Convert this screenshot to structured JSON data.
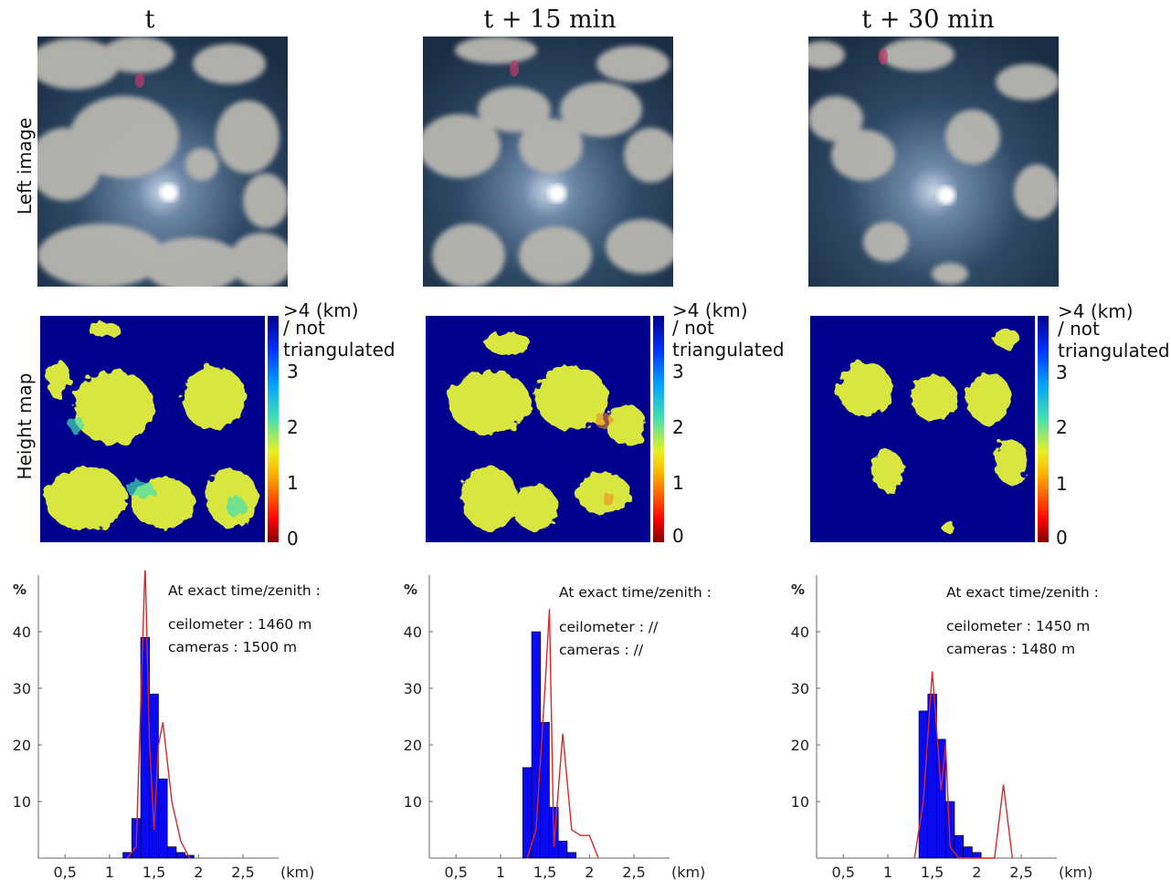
{
  "columns": [
    {
      "title": "t"
    },
    {
      "title": "t + 15 min"
    },
    {
      "title": "t + 30 min"
    }
  ],
  "row_labels": {
    "left_image": "Left image",
    "height_map": "Height map"
  },
  "colorbar": {
    "top_label_1": ">4 (km)",
    "top_label_2": "/ not",
    "top_label_3": "triangulated",
    "ticks": [
      "3",
      "2",
      "1",
      "0"
    ]
  },
  "histograms": [
    {
      "heading": "At exact time/zenith :",
      "line1": "ceilometer : 1460 m",
      "line2": "cameras : 1500 m"
    },
    {
      "heading": "At exact time/zenith :",
      "line1": "ceilometer : //",
      "line2": "cameras : //"
    },
    {
      "heading": "At exact time/zenith :",
      "line1": "ceilometer : 1450 m",
      "line2": "cameras : 1480 m"
    }
  ],
  "chart_data": [
    {
      "type": "bar",
      "ylabel": "%",
      "xlabel": "(km)",
      "xticks": [
        "0,5",
        "1",
        "1,5",
        "2",
        "2,5"
      ],
      "yticks": [
        "10",
        "20",
        "30",
        "40"
      ],
      "xlim": [
        0.2,
        2.9
      ],
      "ylim": [
        0,
        50
      ],
      "bin_width": 0.1,
      "bars_x": [
        1.2,
        1.3,
        1.4,
        1.5,
        1.6,
        1.7,
        1.8,
        1.9
      ],
      "bars_y": [
        1,
        7,
        39,
        29,
        14,
        2,
        1,
        0.5
      ],
      "line_x": [
        1.2,
        1.3,
        1.4,
        1.45,
        1.5,
        1.55,
        1.6,
        1.7,
        1.8,
        1.9
      ],
      "line_y": [
        0,
        2,
        52,
        20,
        5,
        20,
        24,
        10,
        3,
        0
      ]
    },
    {
      "type": "bar",
      "ylabel": "%",
      "xlabel": "(km)",
      "xticks": [
        "0,5",
        "1",
        "1,5",
        "2",
        "2,5"
      ],
      "yticks": [
        "10",
        "20",
        "30",
        "40"
      ],
      "xlim": [
        0.2,
        2.9
      ],
      "ylim": [
        0,
        50
      ],
      "bin_width": 0.1,
      "bars_x": [
        1.3,
        1.4,
        1.5,
        1.6,
        1.7,
        1.8
      ],
      "bars_y": [
        16,
        40,
        24,
        9,
        3,
        1
      ],
      "line_x": [
        1.3,
        1.4,
        1.5,
        1.55,
        1.6,
        1.7,
        1.8,
        1.9,
        2.0,
        2.1
      ],
      "line_y": [
        0,
        5,
        30,
        44,
        2,
        22,
        5,
        4,
        4,
        0
      ]
    },
    {
      "type": "bar",
      "ylabel": "%",
      "xlabel": "(km)",
      "xticks": [
        "0,5",
        "1",
        "1,5",
        "2",
        "2,5"
      ],
      "yticks": [
        "10",
        "20",
        "30",
        "40"
      ],
      "xlim": [
        0.2,
        2.9
      ],
      "ylim": [
        0,
        50
      ],
      "bin_width": 0.1,
      "bars_x": [
        1.4,
        1.5,
        1.6,
        1.7,
        1.8,
        1.9,
        2.0
      ],
      "bars_y": [
        26,
        29,
        21,
        10,
        4,
        2,
        1
      ],
      "line_x": [
        1.3,
        1.4,
        1.5,
        1.6,
        1.65,
        1.7,
        1.8,
        1.9,
        2.0,
        2.2,
        2.3,
        2.4
      ],
      "line_y": [
        0,
        10,
        33,
        12,
        20,
        2,
        0,
        0,
        0,
        0,
        13,
        0
      ]
    }
  ]
}
